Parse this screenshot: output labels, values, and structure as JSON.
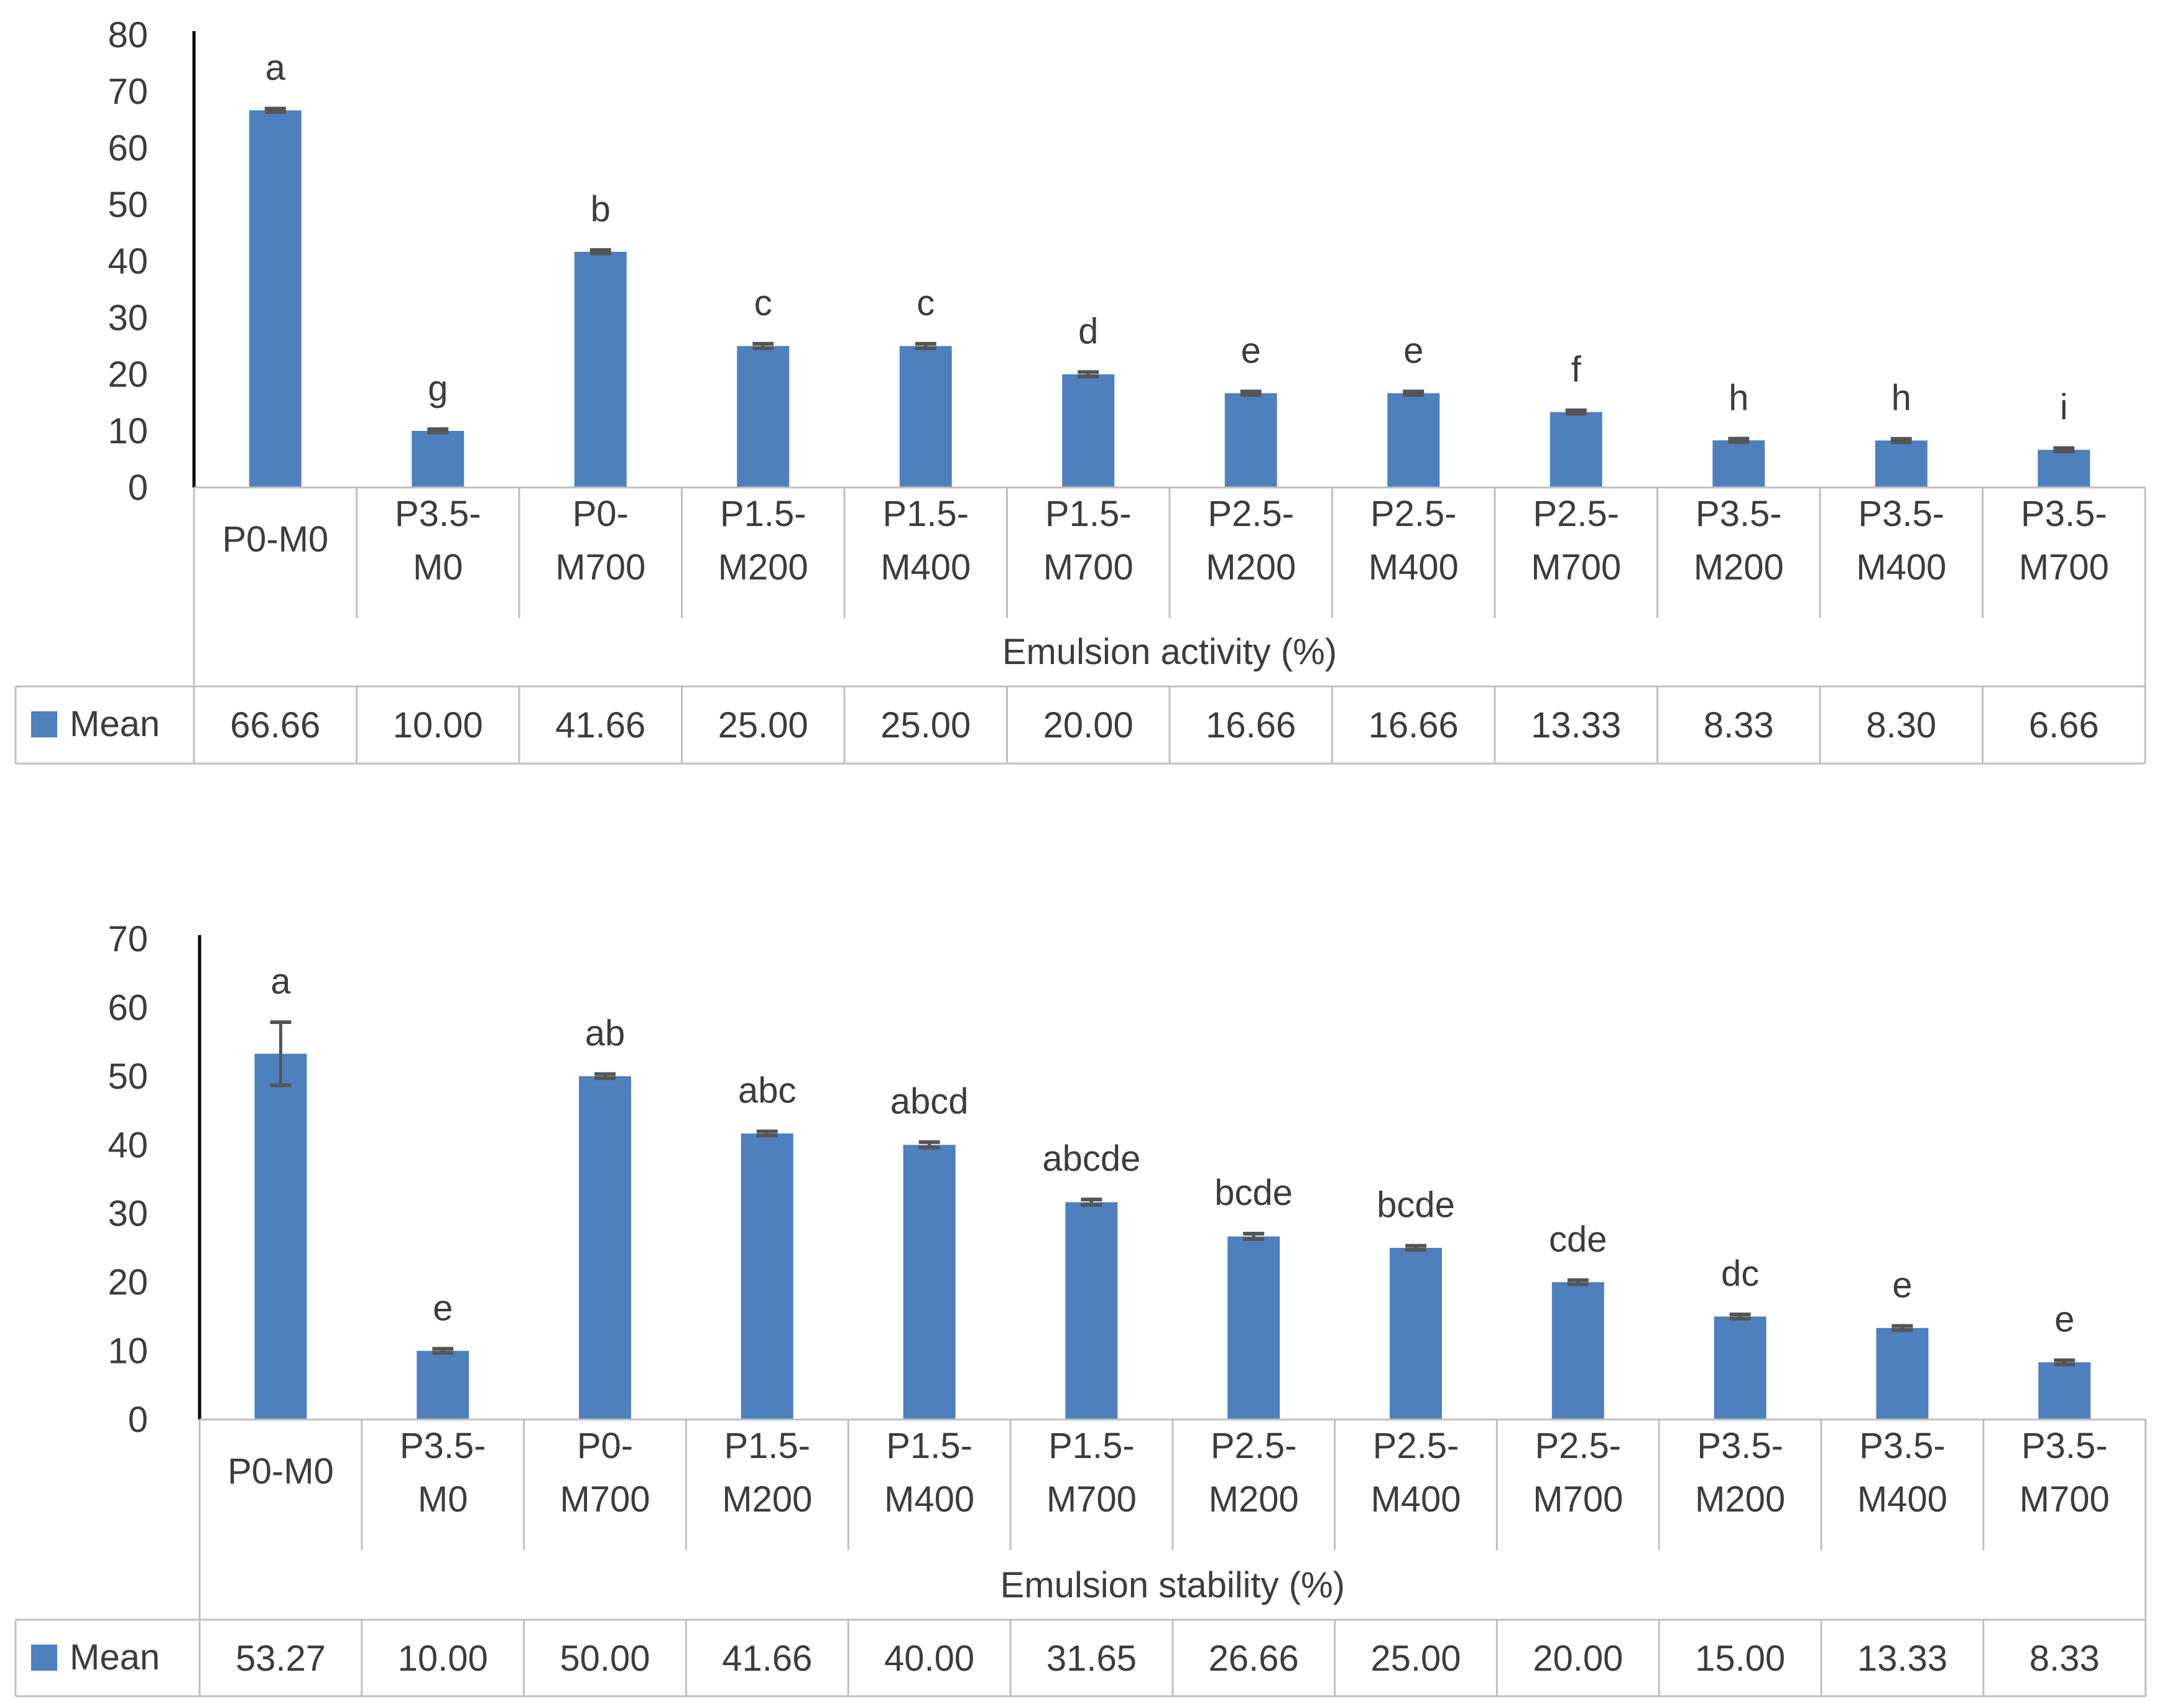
{
  "colors": {
    "bar": "#4E80BD",
    "errorbar": "#555555",
    "axis": "#000000",
    "grid": "#bfbfbf",
    "text": "#3c3c3c"
  },
  "chart_data": [
    {
      "type": "bar",
      "xlabel": "Emulsion activity (%)",
      "categories": [
        [
          "P0-M0"
        ],
        [
          "P3.5-",
          "M0"
        ],
        [
          "P0-",
          "M700"
        ],
        [
          "P1.5-",
          "M200"
        ],
        [
          "P1.5-",
          "M400"
        ],
        [
          "P1.5-",
          "M700"
        ],
        [
          "P2.5-",
          "M200"
        ],
        [
          "P2.5-",
          "M400"
        ],
        [
          "P2.5-",
          "M700"
        ],
        [
          "P3.5-",
          "M200"
        ],
        [
          "P3.5-",
          "M400"
        ],
        [
          "P3.5-",
          "M700"
        ]
      ],
      "series": [
        {
          "name": "Mean",
          "values": [
            66.66,
            10.0,
            41.66,
            25.0,
            25.0,
            20.0,
            16.66,
            16.66,
            13.33,
            8.33,
            8.3,
            6.66
          ]
        }
      ],
      "table_values": [
        "66.66",
        "10.00",
        "41.66",
        "25.00",
        "25.00",
        "20.00",
        "16.66",
        "16.66",
        "13.33",
        "8.33",
        "8.30",
        "6.66"
      ],
      "error": [
        0.3,
        0.3,
        0.3,
        0.4,
        0.4,
        0.4,
        0.3,
        0.3,
        0.3,
        0.3,
        0.3,
        0.3
      ],
      "letters": [
        "a",
        "g",
        "b",
        "c",
        "c",
        "d",
        "e",
        "e",
        "f",
        "h",
        "h",
        "i"
      ],
      "ylim": [
        0,
        80
      ],
      "yticks": [
        0,
        10,
        20,
        30,
        40,
        50,
        60,
        70,
        80
      ],
      "legend": "data table"
    },
    {
      "type": "bar",
      "xlabel": "Emulsion stability (%)",
      "categories": [
        [
          "P0-M0"
        ],
        [
          "P3.5-",
          "M0"
        ],
        [
          "P0-",
          "M700"
        ],
        [
          "P1.5-",
          "M200"
        ],
        [
          "P1.5-",
          "M400"
        ],
        [
          "P1.5-",
          "M700"
        ],
        [
          "P2.5-",
          "M200"
        ],
        [
          "P2.5-",
          "M400"
        ],
        [
          "P2.5-",
          "M700"
        ],
        [
          "P3.5-",
          "M200"
        ],
        [
          "P3.5-",
          "M400"
        ],
        [
          "P3.5-",
          "M700"
        ]
      ],
      "series": [
        {
          "name": "Mean",
          "values": [
            53.27,
            10.0,
            50.0,
            41.66,
            40.0,
            31.65,
            26.66,
            25.0,
            20.0,
            15.0,
            13.33,
            8.33
          ]
        }
      ],
      "table_values": [
        "53.27",
        "10.00",
        "50.00",
        "41.66",
        "40.00",
        "31.65",
        "26.66",
        "25.00",
        "20.00",
        "15.00",
        "13.33",
        "8.33"
      ],
      "error": [
        4.6,
        0.3,
        0.3,
        0.3,
        0.4,
        0.4,
        0.4,
        0.3,
        0.3,
        0.3,
        0.3,
        0.3
      ],
      "letters": [
        "a",
        "e",
        "ab",
        "abc",
        "abcd",
        "abcde",
        "bcde",
        "bcde",
        "cde",
        "dc",
        "e",
        "e"
      ],
      "ylim": [
        0,
        70
      ],
      "yticks": [
        0,
        10,
        20,
        30,
        40,
        50,
        60,
        70
      ],
      "legend": "data table"
    }
  ]
}
